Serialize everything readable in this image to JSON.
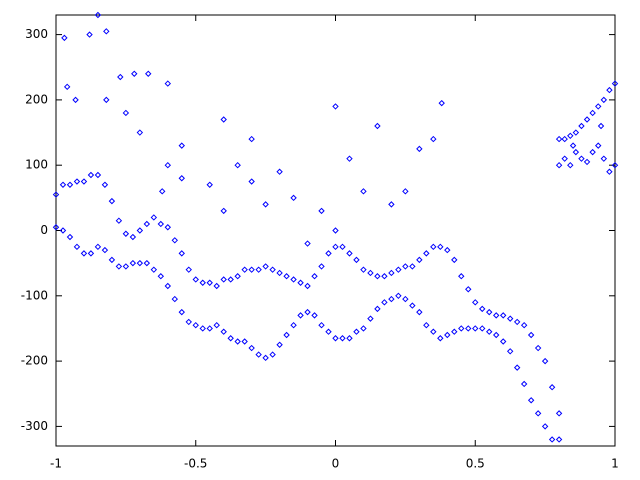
{
  "chart_data": {
    "type": "scatter",
    "color": "#0000ff",
    "grid": false,
    "xlim": [
      -1,
      1
    ],
    "ylim": [
      -330,
      330
    ],
    "xticks": [
      -1,
      -0.5,
      0,
      0.5,
      1
    ],
    "yticks": [
      -300,
      -200,
      -100,
      0,
      100,
      200,
      300
    ],
    "x": [
      -1,
      -1,
      -0.975,
      -0.975,
      -0.95,
      -0.95,
      -0.925,
      -0.925,
      -0.9,
      -0.9,
      -0.875,
      -0.875,
      -0.85,
      -0.85,
      -0.825,
      -0.825,
      -0.8,
      -0.8,
      -0.775,
      -0.775,
      -0.75,
      -0.75,
      -0.725,
      -0.725,
      -0.7,
      -0.7,
      -0.675,
      -0.675,
      -0.65,
      -0.65,
      -0.625,
      -0.625,
      -0.6,
      -0.6,
      -0.575,
      -0.575,
      -0.55,
      -0.55,
      -0.525,
      -0.525,
      -0.5,
      -0.5,
      -0.475,
      -0.475,
      -0.45,
      -0.45,
      -0.425,
      -0.425,
      -0.4,
      -0.4,
      -0.375,
      -0.375,
      -0.35,
      -0.35,
      -0.325,
      -0.325,
      -0.3,
      -0.3,
      -0.275,
      -0.275,
      -0.25,
      -0.25,
      -0.225,
      -0.225,
      -0.2,
      -0.2,
      -0.175,
      -0.175,
      -0.15,
      -0.15,
      -0.125,
      -0.125,
      -0.1,
      -0.1,
      -0.075,
      -0.075,
      -0.05,
      -0.05,
      -0.025,
      -0.025,
      0,
      0,
      0.025,
      0.025,
      0.05,
      0.05,
      0.075,
      0.075,
      0.1,
      0.1,
      0.125,
      0.125,
      0.15,
      0.15,
      0.175,
      0.175,
      0.2,
      0.2,
      0.225,
      0.225,
      0.25,
      0.25,
      0.275,
      0.275,
      0.3,
      0.3,
      0.325,
      0.325,
      0.35,
      0.35,
      0.375,
      0.375,
      0.4,
      0.4,
      0.425,
      0.425,
      0.45,
      0.45,
      0.475,
      0.475,
      0.5,
      0.5,
      0.525,
      0.525,
      0.55,
      0.55,
      0.575,
      0.575,
      0.6,
      0.6,
      0.625,
      0.625,
      0.65,
      0.65,
      0.675,
      0.675,
      0.7,
      0.7,
      0.725,
      0.725,
      0.75,
      0.75,
      0.775,
      0.775,
      0.8,
      0.8,
      0.8,
      0.8,
      0.82,
      0.82,
      0.84,
      0.84,
      0.86,
      0.86,
      0.88,
      0.88,
      0.9,
      0.9,
      0.92,
      0.92,
      0.94,
      0.94,
      0.96,
      0.96,
      0.98,
      0.98,
      1,
      1,
      0.85,
      0.95,
      -0.97,
      -0.85,
      -0.82,
      -0.88,
      -0.96,
      -0.93,
      -0.82,
      -0.77,
      -0.72,
      -0.67,
      -0.6,
      -0.55,
      -0.6,
      -0.62,
      -0.55,
      -0.45,
      -0.4,
      -0.3,
      -0.3,
      -0.2,
      -0.15,
      -0.1,
      -0.05,
      0,
      0.05,
      0.1,
      0.15,
      0.2,
      0.3,
      0.35,
      0.38,
      0.25,
      -0.25,
      -0.4,
      -0.35,
      0,
      -0.7,
      -0.75
    ],
    "values": [
      55,
      5,
      70,
      0,
      70,
      -10,
      75,
      -25,
      75,
      -35,
      85,
      -35,
      85,
      -25,
      70,
      -30,
      45,
      -45,
      15,
      -55,
      -5,
      -55,
      -10,
      -50,
      0,
      -50,
      10,
      -50,
      20,
      -60,
      10,
      -70,
      5,
      -85,
      -15,
      -105,
      -35,
      -125,
      -60,
      -140,
      -75,
      -145,
      -80,
      -150,
      -80,
      -150,
      -85,
      -145,
      -75,
      -155,
      -75,
      -165,
      -70,
      -170,
      -60,
      -170,
      -60,
      -180,
      -60,
      -190,
      -55,
      -195,
      -60,
      -190,
      -65,
      -175,
      -70,
      -160,
      -75,
      -145,
      -80,
      -130,
      -85,
      -125,
      -70,
      -130,
      -55,
      -145,
      -35,
      -155,
      -25,
      -165,
      -25,
      -165,
      -35,
      -165,
      -45,
      -155,
      -60,
      -150,
      -65,
      -135,
      -70,
      -120,
      -70,
      -110,
      -65,
      -105,
      -60,
      -100,
      -55,
      -105,
      -55,
      -115,
      -45,
      -125,
      -35,
      -145,
      -25,
      -155,
      -25,
      -165,
      -30,
      -160,
      -45,
      -155,
      -70,
      -150,
      -90,
      -150,
      -110,
      -150,
      -120,
      -150,
      -125,
      -155,
      -130,
      -160,
      -130,
      -170,
      -135,
      -185,
      -140,
      -210,
      -145,
      -235,
      -160,
      -260,
      -180,
      -280,
      -200,
      -300,
      -240,
      -320,
      -280,
      -320,
      100,
      140,
      110,
      140,
      100,
      145,
      120,
      150,
      110,
      160,
      105,
      170,
      120,
      180,
      130,
      190,
      110,
      200,
      90,
      215,
      100,
      225,
      130,
      160,
      295,
      330,
      305,
      300,
      220,
      200,
      200,
      235,
      240,
      240,
      225,
      130,
      100,
      60,
      80,
      70,
      170,
      140,
      75,
      90,
      50,
      -20,
      30,
      190,
      110,
      60,
      160,
      40,
      125,
      140,
      195,
      60,
      40,
      30,
      100,
      0,
      150,
      180
    ]
  }
}
